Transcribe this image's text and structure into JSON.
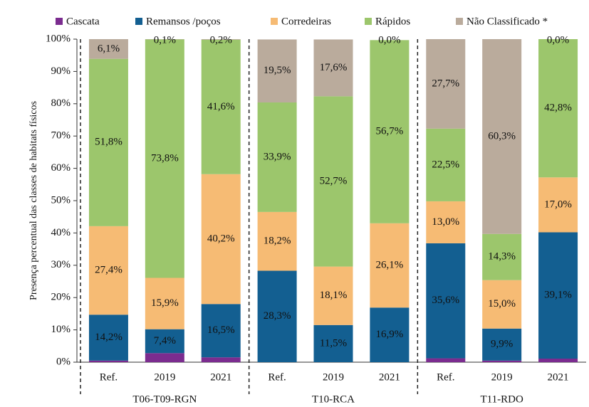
{
  "chart_data": {
    "type": "stacked_bar",
    "y_label": "Presença percentual das classes de habitats físicos",
    "categories": [
      "Ref.",
      "2019",
      "2021",
      "Ref.",
      "2019",
      "2021",
      "Ref.",
      "2019",
      "2021"
    ],
    "groups": [
      "T06-T09-RGN",
      "T10-RCA",
      "T11-RDO"
    ],
    "series": [
      {
        "name": "Cascata",
        "color": "#7b2c8f",
        "values": [
          0.5,
          2.8,
          1.5,
          0,
          0,
          0,
          1.2,
          0.5,
          1.1
        ]
      },
      {
        "name": "Remansos /poços",
        "color": "#135f91",
        "values": [
          14.2,
          7.4,
          16.5,
          28.3,
          11.5,
          16.9,
          35.6,
          9.9,
          39.1
        ],
        "value_labels": [
          "14,2%",
          "7,4%",
          "16,5%",
          "28,3%",
          "11,5%",
          "16,9%",
          "35,6%",
          "9,9%",
          "39,1%"
        ]
      },
      {
        "name": "Corredeiras",
        "color": "#f6bb74",
        "values": [
          27.4,
          15.9,
          40.2,
          18.2,
          18.1,
          26.1,
          13.0,
          15.0,
          17.0
        ],
        "value_labels": [
          "27,4%",
          "15,9%",
          "40,2%",
          "18,2%",
          "18,1%",
          "26,1%",
          "13,0%",
          "15,0%",
          "17,0%"
        ]
      },
      {
        "name": "Rápidos",
        "color": "#9cc66c",
        "values": [
          51.8,
          73.8,
          41.6,
          33.9,
          52.7,
          56.7,
          22.5,
          14.3,
          42.8
        ],
        "value_labels": [
          "51,8%",
          "73,8%",
          "41,6%",
          "33,9%",
          "52,7%",
          "56,7%",
          "22,5%",
          "14,3%",
          "42,8%"
        ]
      },
      {
        "name": "Não Classificado *",
        "color": "#baab9c",
        "values": [
          6.1,
          0.1,
          0.2,
          19.5,
          17.6,
          0.0,
          27.7,
          60.3,
          0.0
        ],
        "value_labels": [
          "6,1%",
          "0,1%",
          "0,2%",
          "19,5%",
          "17,6%",
          "0,0%",
          "27,7%",
          "60,3%",
          "0,0%"
        ]
      }
    ],
    "ylim": [
      0,
      100
    ],
    "yticks": [
      {
        "value": 0,
        "label": "0%"
      },
      {
        "value": 10,
        "label": "10%"
      },
      {
        "value": 20,
        "label": "20%"
      },
      {
        "value": 30,
        "label": "30%"
      },
      {
        "value": 40,
        "label": "40%"
      },
      {
        "value": 50,
        "label": "50%"
      },
      {
        "value": 60,
        "label": "60%"
      },
      {
        "value": 70,
        "label": "70%"
      },
      {
        "value": 80,
        "label": "80%"
      },
      {
        "value": 90,
        "label": "90%"
      },
      {
        "value": 100,
        "label": "100%"
      }
    ],
    "legend": "top"
  }
}
